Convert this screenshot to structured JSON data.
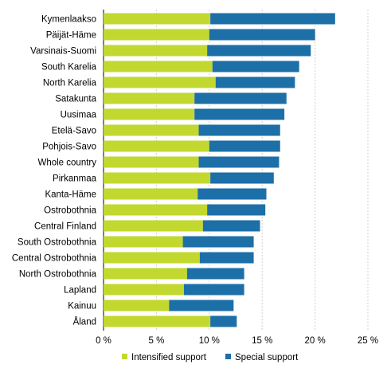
{
  "chart_data": {
    "type": "bar",
    "orientation": "horizontal",
    "stacked": true,
    "categories": [
      "Kymenlaakso",
      "Päijät-Häme",
      "Varsinais-Suomi",
      "South Karelia",
      "North Karelia",
      "Satakunta",
      "Uusimaa",
      "Etelä-Savo",
      "Pohjois-Savo",
      "Whole country",
      "Pirkanmaa",
      "Kanta-Häme",
      "Ostrobothnia",
      "Central Finland",
      "South Ostrobothnia",
      "Central Ostrobothnia",
      "North Ostrobothnia",
      "Lapland",
      "Kainuu",
      "Åland"
    ],
    "series": [
      {
        "name": "Intensified support",
        "color": "#c3d82f",
        "values": [
          10.1,
          10.0,
          9.8,
          10.3,
          10.6,
          8.6,
          8.6,
          9.0,
          10.0,
          9.0,
          10.1,
          8.9,
          9.8,
          9.4,
          7.5,
          9.1,
          7.9,
          7.6,
          6.2,
          10.1
        ]
      },
      {
        "name": "Special support",
        "color": "#1d6fa8",
        "values": [
          11.8,
          10.0,
          9.8,
          8.2,
          7.5,
          8.7,
          8.5,
          7.7,
          6.7,
          7.6,
          6.0,
          6.5,
          5.5,
          5.4,
          6.7,
          5.1,
          5.4,
          5.7,
          6.1,
          2.5
        ]
      }
    ],
    "xlim": [
      0,
      25
    ],
    "xticks": [
      "0 %",
      "5 %",
      "10 %",
      "15 %",
      "20 %",
      "25 %"
    ],
    "xtick_values": [
      0,
      5,
      10,
      15,
      20,
      25
    ],
    "grid": true,
    "legend_position": "bottom"
  }
}
